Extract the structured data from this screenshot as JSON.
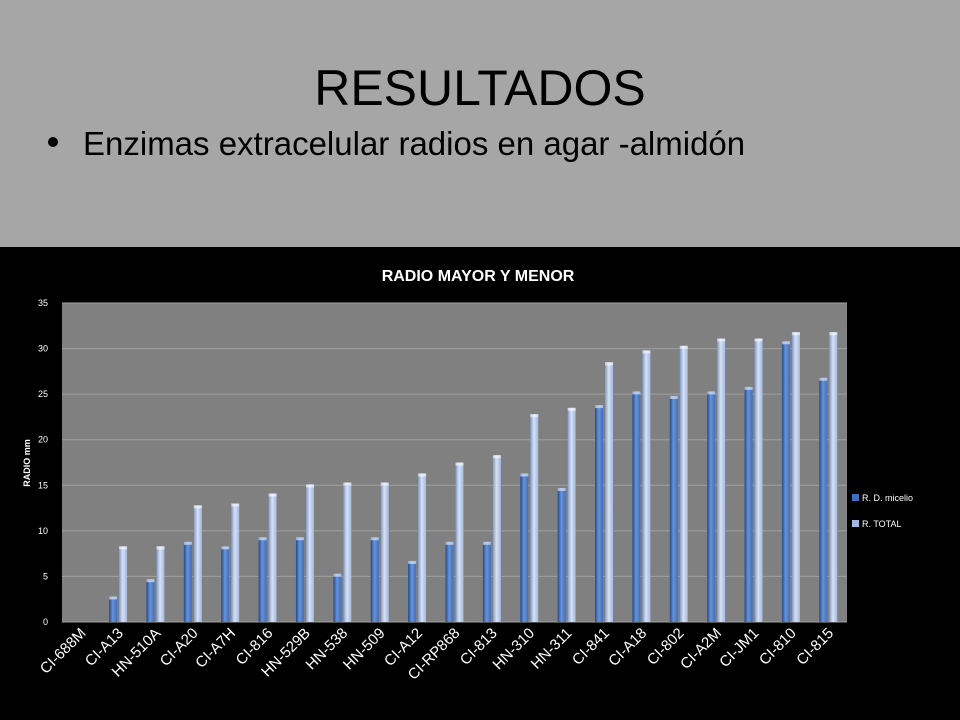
{
  "slide": {
    "title": "RESULTADOS",
    "bullet": "Enzimas extracelular radios en agar -almidón"
  },
  "colors": {
    "top_panel": "#a6a6a6",
    "chart_bg": "#000000",
    "plot_bg": "#808080",
    "series1": "#3d6fc0",
    "series2": "#a3b8e0"
  },
  "chart_data": {
    "type": "bar",
    "title": "RADIO  MAYOR Y MENOR",
    "xlabel": "",
    "ylabel": "RADIO  mm",
    "ylim": [
      0,
      35
    ],
    "yticks": [
      0,
      5,
      10,
      15,
      20,
      25,
      30,
      35
    ],
    "grid": true,
    "legend_position": "right",
    "categories": [
      "CI-688M",
      "CI-A13",
      "HN-510A",
      "CI-A20",
      "CI-A7H",
      "CI-816",
      "HN-529B",
      "HN-538",
      "HN-509",
      "CI-A12",
      "CI-RP868",
      "CI-813",
      "HN-310",
      "HN-311",
      "CI-841",
      "CI-A18",
      "CI-802",
      "CI-A2M",
      "CI-JM1",
      "CI-810",
      "CI-815"
    ],
    "series": [
      {
        "name": "R. D. micelio",
        "values": [
          0,
          2.8,
          4.7,
          8.8,
          8.3,
          9.3,
          9.3,
          5.3,
          9.3,
          6.7,
          8.8,
          8.8,
          16.3,
          14.7,
          23.8,
          25.3,
          24.8,
          25.3,
          25.8,
          30.8,
          26.8
        ]
      },
      {
        "name": "R. TOTAL",
        "values": [
          0,
          8.3,
          8.3,
          12.8,
          13.0,
          14.1,
          15.1,
          15.3,
          15.3,
          16.3,
          17.5,
          18.3,
          22.8,
          23.5,
          28.5,
          29.8,
          30.3,
          31.1,
          31.1,
          31.8,
          31.8
        ]
      }
    ]
  }
}
